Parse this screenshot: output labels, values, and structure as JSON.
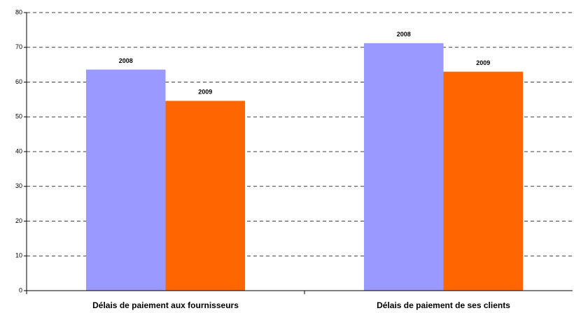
{
  "chart_data": {
    "type": "bar",
    "categories": [
      "Délais de paiement aux fournisseurs",
      "Délais de paiement de ses clients"
    ],
    "series": [
      {
        "name": "2008",
        "color": "#9999ff",
        "values": [
          63.6,
          71.2
        ]
      },
      {
        "name": "2009",
        "color": "#ff6600",
        "values": [
          54.6,
          63
        ]
      }
    ],
    "ylim": [
      0,
      80
    ],
    "yticks": [
      0,
      10,
      20,
      30,
      40,
      50,
      60,
      70,
      80
    ],
    "grid": true
  }
}
